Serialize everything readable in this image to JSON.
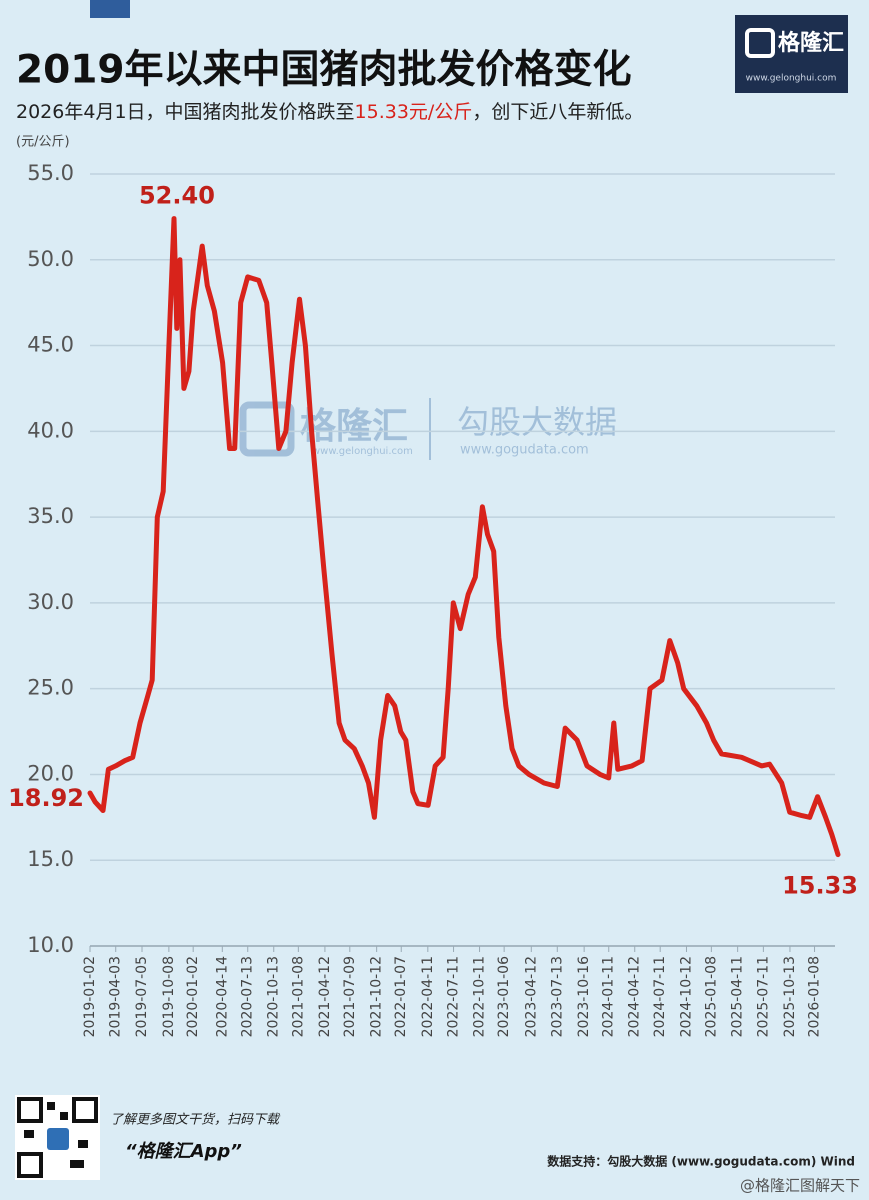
{
  "branding": {
    "logo": "格隆汇",
    "logo_url": "www.gelonghui.com",
    "watermark_left": "格隆汇",
    "watermark_left_url": "www.gelonghui.com",
    "watermark_right": "勾股大数据",
    "watermark_right_url": "www.gogudata.com"
  },
  "chart_data": {
    "type": "line",
    "title": "2019年以来中国猪肉批发价格变化",
    "subtitle_before": "2026年4月1日，中国猪肉批发价格跌至",
    "subtitle_highlight": "15.33元/公斤",
    "subtitle_after": "，创下近八年新低。",
    "y_label": "(元/公斤)",
    "color": "#d8231b",
    "x": [
      "2019-01-02",
      "2019-01-20",
      "2019-02-17",
      "2019-03-08",
      "2019-04-03",
      "2019-05-05",
      "2019-06-02",
      "2019-06-28",
      "2019-07-24",
      "2019-08-10",
      "2019-08-28",
      "2019-09-18",
      "2019-10-08",
      "2019-10-26",
      "2019-11-05",
      "2019-11-16",
      "2019-11-30",
      "2019-12-18",
      "2020-01-02",
      "2020-02-03",
      "2020-02-21",
      "2020-03-17",
      "2020-04-15",
      "2020-05-10",
      "2020-05-28",
      "2020-06-18",
      "2020-07-13",
      "2020-08-21",
      "2020-09-18",
      "2020-10-06",
      "2020-10-31",
      "2020-11-25",
      "2020-12-17",
      "2021-01-12",
      "2021-02-02",
      "2021-02-24",
      "2021-03-17",
      "2021-04-08",
      "2021-05-07",
      "2021-06-01",
      "2021-06-22",
      "2021-07-25",
      "2021-08-22",
      "2021-09-13",
      "2021-10-04",
      "2021-10-26",
      "2021-11-20",
      "2021-12-15",
      "2022-01-05",
      "2022-01-23",
      "2022-02-17",
      "2022-03-07",
      "2022-04-12",
      "2022-05-07",
      "2022-06-04",
      "2022-06-22",
      "2022-07-10",
      "2022-08-04",
      "2022-09-01",
      "2022-09-26",
      "2022-10-21",
      "2022-11-08",
      "2022-11-30",
      "2022-12-18",
      "2023-01-12",
      "2023-02-03",
      "2023-02-27",
      "2023-04-04",
      "2023-05-27",
      "2023-07-13",
      "2023-08-10",
      "2023-09-21",
      "2023-10-26",
      "2023-12-11",
      "2024-01-11",
      "2024-01-29",
      "2024-02-12",
      "2024-04-02",
      "2024-05-08",
      "2024-06-05",
      "2024-07-17",
      "2024-08-14",
      "2024-09-11",
      "2024-10-02",
      "2024-11-17",
      "2024-12-22",
      "2025-01-16",
      "2025-02-13",
      "2025-04-25",
      "2025-07-05",
      "2025-08-02",
      "2025-09-14",
      "2025-10-12",
      "2025-11-24",
      "2025-12-22",
      "2026-01-19",
      "2026-02-16",
      "2026-03-10",
      "2026-04-01"
    ],
    "values": [
      18.92,
      18.4,
      17.9,
      20.3,
      20.5,
      20.8,
      21,
      23,
      24.5,
      25.5,
      35,
      36.5,
      45,
      52.4,
      46,
      50,
      42.5,
      43.5,
      47,
      50.8,
      48.5,
      47,
      44,
      39,
      39,
      47.5,
      49,
      48.8,
      47.5,
      44,
      39,
      40,
      44,
      47.7,
      45,
      40,
      36,
      32,
      27,
      23,
      22,
      21.5,
      20.5,
      19.5,
      17.5,
      22,
      24.6,
      24,
      22.5,
      22,
      19,
      18.3,
      18.2,
      20.5,
      21,
      25,
      30,
      28.5,
      30.5,
      31.5,
      35.6,
      34,
      33,
      28,
      24,
      21.5,
      20.5,
      20,
      19.5,
      19.3,
      22.7,
      22,
      20.5,
      20,
      19.8,
      23,
      20.3,
      20.5,
      20.8,
      25,
      25.5,
      27.8,
      26.5,
      25,
      24,
      23,
      22,
      21.2,
      21,
      20.5,
      20.6,
      19.5,
      17.8,
      17.6,
      17.5,
      18.7,
      17.5,
      16.5,
      15.33
    ],
    "xlim": [
      "2019-01-02",
      "2026-04-01"
    ],
    "xticks": [
      "2019-01-02",
      "2019-04-03",
      "2019-07-05",
      "2019-10-08",
      "2020-01-02",
      "2020-04-14",
      "2020-07-13",
      "2020-10-13",
      "2021-01-08",
      "2021-04-12",
      "2021-07-09",
      "2021-10-12",
      "2022-01-07",
      "2022-04-11",
      "2022-07-11",
      "2022-10-11",
      "2023-01-06",
      "2023-04-12",
      "2023-07-13",
      "2023-10-16",
      "2024-01-11",
      "2024-04-12",
      "2024-07-11",
      "2024-10-12",
      "2025-01-08",
      "2025-04-11",
      "2025-07-11",
      "2025-10-13",
      "2026-01-08"
    ],
    "ylim": [
      10,
      55
    ],
    "yticks": [
      {
        "value": 10,
        "label": "10.0"
      },
      {
        "value": 15,
        "label": "15.0"
      },
      {
        "value": 20,
        "label": "20.0"
      },
      {
        "value": 25,
        "label": "25.0"
      },
      {
        "value": 30,
        "label": "30.0"
      },
      {
        "value": 35,
        "label": "35.0"
      },
      {
        "value": 40,
        "label": "40.0"
      },
      {
        "value": 45,
        "label": "45.0"
      },
      {
        "value": 50,
        "label": "50.0"
      },
      {
        "value": 55,
        "label": "55.0"
      }
    ],
    "grid": true,
    "annotations": [
      {
        "label": "18.92",
        "value": 18.92,
        "x": "2019-01-02"
      },
      {
        "label": "52.40",
        "value": 52.4,
        "x": "2019-10-26"
      },
      {
        "label": "15.33",
        "value": 15.33,
        "x": "2026-04-01"
      }
    ]
  },
  "footer": {
    "qr_caption": "了解更多图文干货，扫码下载",
    "app": "“格隆汇App”",
    "source": "数据支持：勾股大数据 (www.gogudata.com) Wind",
    "credit": "@格隆汇图解天下"
  }
}
